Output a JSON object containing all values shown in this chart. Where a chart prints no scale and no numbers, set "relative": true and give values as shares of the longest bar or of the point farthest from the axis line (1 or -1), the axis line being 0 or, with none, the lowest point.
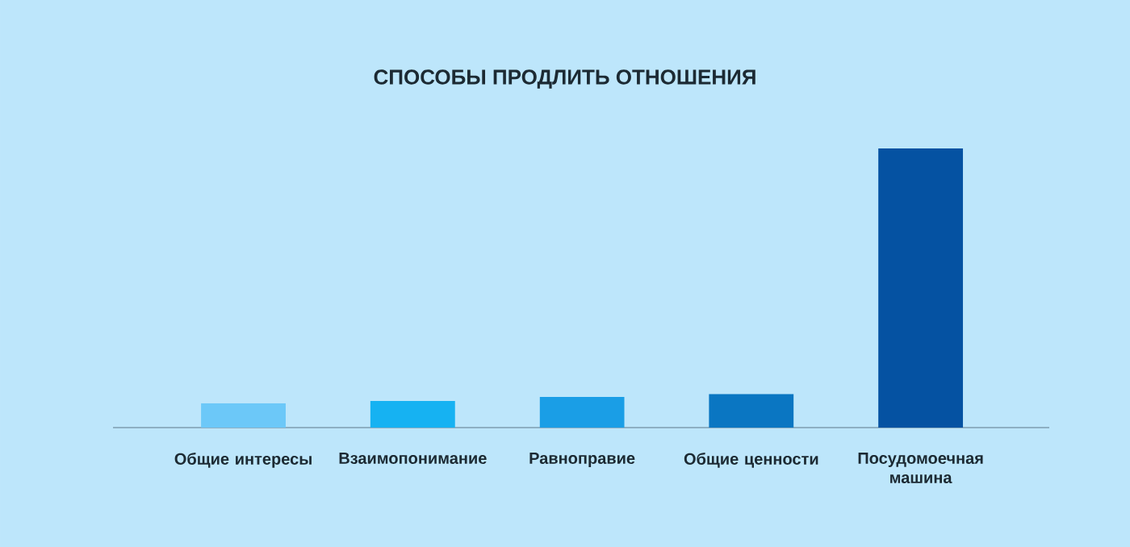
{
  "chart_data": {
    "type": "bar",
    "title": "СПОСОБЫ ПРОДЛИТЬ ОТНОШЕНИЯ",
    "categories": [
      "Общие интересы",
      "Взаимопонимание",
      "Равноправие",
      "Общие ценности",
      "Посудомоечная машина"
    ],
    "values": [
      0.087,
      0.095,
      0.11,
      0.12,
      1
    ],
    "colors": [
      "#6cc8f8",
      "#16b2f2",
      "#1a9ee6",
      "#0a76c2",
      "#0552a2"
    ],
    "relative": true
  }
}
